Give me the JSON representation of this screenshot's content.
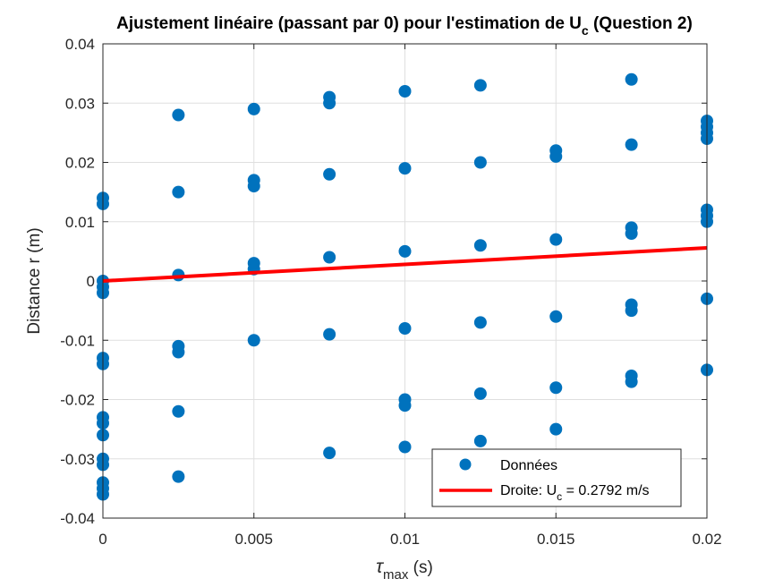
{
  "chart_data": {
    "type": "scatter",
    "title": {
      "main": "Ajustement linéaire (passant par 0) pour l'estimation de U",
      "sub": "c",
      "suffix": " (Question 2)"
    },
    "xlabel": {
      "main": "τ",
      "sub": "max",
      "suffix": " (s)"
    },
    "ylabel": "Distance r (m)",
    "xlim": [
      0,
      0.02
    ],
    "ylim": [
      -0.04,
      0.04
    ],
    "xticks": [
      0,
      0.005,
      0.01,
      0.015,
      0.02
    ],
    "xtick_labels": [
      "0",
      "0.005",
      "0.01",
      "0.015",
      "0.02"
    ],
    "yticks": [
      -0.04,
      -0.03,
      -0.02,
      -0.01,
      0,
      0.01,
      0.02,
      0.03,
      0.04
    ],
    "ytick_labels": [
      "-0.04",
      "-0.03",
      "-0.02",
      "-0.01",
      "0",
      "0.01",
      "0.02",
      "0.03",
      "0.04"
    ],
    "grid": true,
    "legend_position": "bottom-right",
    "series": [
      {
        "name": "Données",
        "kind": "scatter",
        "color": "#0072BD",
        "points": [
          [
            0,
            0.014
          ],
          [
            0,
            0.013
          ],
          [
            0,
            0.0
          ],
          [
            0,
            -0.001
          ],
          [
            0,
            -0.002
          ],
          [
            0,
            -0.013
          ],
          [
            0,
            -0.014
          ],
          [
            0,
            -0.023
          ],
          [
            0,
            -0.024
          ],
          [
            0,
            -0.026
          ],
          [
            0,
            -0.03
          ],
          [
            0,
            -0.031
          ],
          [
            0,
            -0.034
          ],
          [
            0,
            -0.035
          ],
          [
            0,
            -0.036
          ],
          [
            0.0025,
            0.028
          ],
          [
            0.0025,
            0.015
          ],
          [
            0.0025,
            0.001
          ],
          [
            0.0025,
            -0.011
          ],
          [
            0.0025,
            -0.012
          ],
          [
            0.0025,
            -0.022
          ],
          [
            0.0025,
            -0.033
          ],
          [
            0.005,
            0.029
          ],
          [
            0.005,
            0.017
          ],
          [
            0.005,
            0.016
          ],
          [
            0.005,
            0.003
          ],
          [
            0.005,
            0.002
          ],
          [
            0.005,
            -0.01
          ],
          [
            0.0075,
            0.031
          ],
          [
            0.0075,
            0.03
          ],
          [
            0.0075,
            0.018
          ],
          [
            0.0075,
            0.004
          ],
          [
            0.0075,
            -0.009
          ],
          [
            0.0075,
            -0.029
          ],
          [
            0.01,
            0.032
          ],
          [
            0.01,
            0.019
          ],
          [
            0.01,
            0.005
          ],
          [
            0.01,
            -0.008
          ],
          [
            0.01,
            -0.02
          ],
          [
            0.01,
            -0.021
          ],
          [
            0.01,
            -0.028
          ],
          [
            0.0125,
            0.033
          ],
          [
            0.0125,
            0.02
          ],
          [
            0.0125,
            0.006
          ],
          [
            0.0125,
            -0.007
          ],
          [
            0.0125,
            -0.019
          ],
          [
            0.0125,
            -0.027
          ],
          [
            0.015,
            0.022
          ],
          [
            0.015,
            0.021
          ],
          [
            0.015,
            0.007
          ],
          [
            0.015,
            -0.006
          ],
          [
            0.015,
            -0.018
          ],
          [
            0.015,
            -0.025
          ],
          [
            0.0175,
            0.034
          ],
          [
            0.0175,
            0.023
          ],
          [
            0.0175,
            0.009
          ],
          [
            0.0175,
            0.008
          ],
          [
            0.0175,
            -0.004
          ],
          [
            0.0175,
            -0.005
          ],
          [
            0.0175,
            -0.016
          ],
          [
            0.0175,
            -0.017
          ],
          [
            0.02,
            0.027
          ],
          [
            0.02,
            0.026
          ],
          [
            0.02,
            0.025
          ],
          [
            0.02,
            0.024
          ],
          [
            0.02,
            0.012
          ],
          [
            0.02,
            0.011
          ],
          [
            0.02,
            0.01
          ],
          [
            0.02,
            -0.003
          ],
          [
            0.02,
            -0.015
          ]
        ]
      },
      {
        "name": "Droite: U",
        "name_sub": "c",
        "name_suffix": " = 0.2792 m/s",
        "kind": "line",
        "color": "#FF0000",
        "x": [
          0,
          0.02
        ],
        "y": [
          0,
          0.005584
        ]
      }
    ]
  }
}
